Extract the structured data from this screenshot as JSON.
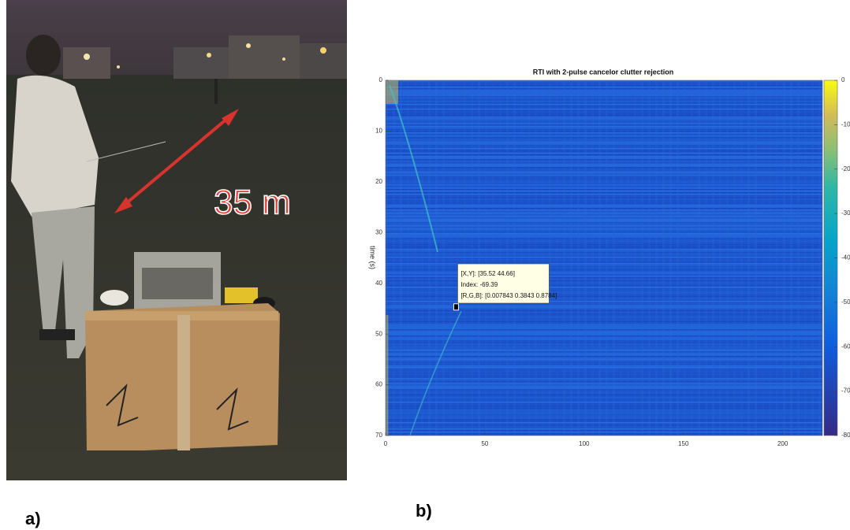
{
  "figure": {
    "panel_a": {
      "label": "a)",
      "annotation": "35 m"
    },
    "panel_b": {
      "label": "b)"
    }
  },
  "chart_data": {
    "type": "heatmap",
    "title": "RTI with 2-pulse cancelor clutter rejection",
    "y_label": "time (s)",
    "xlim": [
      0,
      220
    ],
    "xticks": [
      0,
      50,
      100,
      150,
      200
    ],
    "ylim": [
      0,
      70
    ],
    "yticks": [
      0,
      10,
      20,
      30,
      40,
      50,
      60,
      70
    ],
    "colorbar": {
      "lim": [
        -80,
        0
      ],
      "ticks": [
        0,
        -10,
        -20,
        -30,
        -40,
        -50,
        -60,
        -70,
        -80
      ]
    },
    "datatip": {
      "x": 35.52,
      "y": 44.66,
      "lines": [
        "[X,Y]: [35.52 44.66]",
        "Index: -69.39",
        "[R,G,B]: [0.007843 0.3843 0.8784]"
      ]
    }
  }
}
